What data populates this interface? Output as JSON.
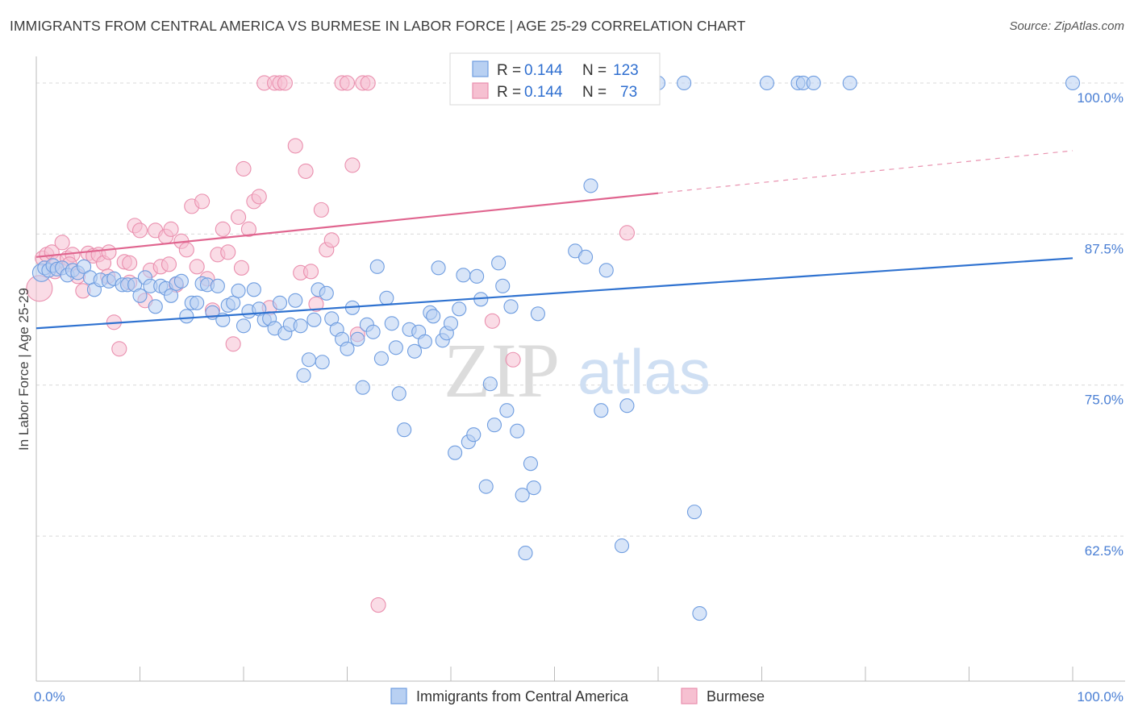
{
  "title": "IMMIGRANTS FROM CENTRAL AMERICA VS BURMESE IN LABOR FORCE | AGE 25-29 CORRELATION CHART",
  "source": "Source: ZipAtlas.com",
  "watermark": {
    "zip": "ZIP",
    "atlas": "atlas"
  },
  "colors": {
    "blue_fill": "#b8d0f2",
    "blue_stroke": "#6f9de0",
    "blue_line": "#2f72d0",
    "pink_fill": "#f6c0d1",
    "pink_stroke": "#ea8fae",
    "pink_line": "#e0658f",
    "grid": "#d9d9d9",
    "tick_text": "#4a7fd4"
  },
  "legend": {
    "rows": [
      {
        "r_label": "R = ",
        "r_value": "0.144",
        "n_label": "N = ",
        "n_value": "123"
      },
      {
        "r_label": "R = ",
        "r_value": "0.144",
        "n_label": "N = ",
        "n_value": "73"
      }
    ]
  },
  "chart_data": {
    "type": "scatter",
    "title": "IMMIGRANTS FROM CENTRAL AMERICA VS BURMESE IN LABOR FORCE | AGE 25-29 CORRELATION CHART",
    "xlabel": "",
    "ylabel": "In Labor Force | Age 25-29",
    "xlim": [
      0,
      100
    ],
    "ylim": [
      50.5,
      102.2
    ],
    "x_ticks": [
      "0.0%",
      "100.0%"
    ],
    "y_ticks": [
      {
        "value": 100.0,
        "label": "100.0%"
      },
      {
        "value": 87.5,
        "label": "87.5%"
      },
      {
        "value": 75.0,
        "label": "75.0%"
      },
      {
        "value": 62.5,
        "label": "62.5%"
      }
    ],
    "grid": true,
    "legend_position": "top-center",
    "series": [
      {
        "name": "Immigrants from Central America",
        "color": "#6f9de0",
        "trend": {
          "x": [
            0,
            100
          ],
          "y": [
            79.7,
            85.5
          ],
          "dashed_from": null
        },
        "points": [
          [
            0.5,
            84.3
          ],
          [
            0.8,
            84.7
          ],
          [
            1.2,
            84.5
          ],
          [
            1.6,
            84.9
          ],
          [
            2.0,
            84.6
          ],
          [
            2.5,
            84.7
          ],
          [
            3.0,
            84.1
          ],
          [
            3.5,
            84.5
          ],
          [
            4.0,
            84.3
          ],
          [
            4.6,
            84.8
          ],
          [
            5.2,
            83.9
          ],
          [
            5.6,
            82.9
          ],
          [
            6.2,
            83.7
          ],
          [
            7.0,
            83.6
          ],
          [
            7.5,
            83.8
          ],
          [
            8.3,
            83.3
          ],
          [
            8.8,
            83.3
          ],
          [
            9.5,
            83.3
          ],
          [
            10.0,
            82.4
          ],
          [
            10.5,
            83.9
          ],
          [
            11.0,
            83.2
          ],
          [
            11.5,
            81.5
          ],
          [
            12.0,
            83.2
          ],
          [
            12.5,
            83.0
          ],
          [
            13.0,
            82.4
          ],
          [
            13.5,
            83.4
          ],
          [
            14.0,
            83.6
          ],
          [
            14.5,
            80.7
          ],
          [
            15.0,
            81.8
          ],
          [
            15.5,
            81.8
          ],
          [
            16.0,
            83.4
          ],
          [
            16.5,
            83.3
          ],
          [
            17.0,
            81.0
          ],
          [
            17.5,
            83.2
          ],
          [
            18.0,
            80.4
          ],
          [
            18.5,
            81.6
          ],
          [
            19.0,
            81.8
          ],
          [
            19.5,
            82.8
          ],
          [
            20.0,
            79.9
          ],
          [
            20.5,
            81.1
          ],
          [
            21.0,
            82.9
          ],
          [
            21.5,
            81.3
          ],
          [
            22.0,
            80.4
          ],
          [
            22.5,
            80.5
          ],
          [
            23.0,
            79.7
          ],
          [
            23.5,
            81.8
          ],
          [
            24.0,
            79.3
          ],
          [
            24.5,
            80.0
          ],
          [
            25.0,
            82.0
          ],
          [
            25.5,
            79.9
          ],
          [
            25.8,
            75.8
          ],
          [
            26.3,
            77.1
          ],
          [
            26.8,
            80.4
          ],
          [
            27.2,
            82.9
          ],
          [
            27.6,
            76.9
          ],
          [
            28.0,
            82.6
          ],
          [
            28.5,
            80.5
          ],
          [
            29.0,
            79.6
          ],
          [
            29.5,
            78.8
          ],
          [
            30.0,
            78.0
          ],
          [
            30.5,
            81.4
          ],
          [
            31.0,
            78.8
          ],
          [
            31.5,
            74.8
          ],
          [
            31.9,
            80.0
          ],
          [
            32.5,
            79.4
          ],
          [
            32.9,
            84.8
          ],
          [
            33.3,
            77.2
          ],
          [
            33.8,
            82.2
          ],
          [
            34.3,
            80.1
          ],
          [
            34.7,
            78.1
          ],
          [
            35.0,
            74.3
          ],
          [
            35.5,
            71.3
          ],
          [
            36.0,
            79.6
          ],
          [
            36.5,
            77.8
          ],
          [
            36.9,
            79.4
          ],
          [
            37.5,
            78.6
          ],
          [
            38.0,
            81.0
          ],
          [
            38.3,
            80.7
          ],
          [
            38.8,
            84.7
          ],
          [
            39.2,
            78.7
          ],
          [
            39.6,
            79.3
          ],
          [
            40.0,
            80.1
          ],
          [
            40.4,
            69.4
          ],
          [
            40.8,
            81.3
          ],
          [
            41.2,
            84.1
          ],
          [
            41.7,
            70.3
          ],
          [
            42.2,
            70.9
          ],
          [
            42.5,
            84.0
          ],
          [
            42.9,
            82.1
          ],
          [
            43.4,
            66.6
          ],
          [
            43.8,
            75.1
          ],
          [
            44.2,
            71.7
          ],
          [
            44.6,
            85.1
          ],
          [
            45.0,
            83.2
          ],
          [
            45.4,
            72.9
          ],
          [
            45.8,
            81.5
          ],
          [
            46.4,
            71.2
          ],
          [
            46.9,
            65.9
          ],
          [
            47.2,
            61.1
          ],
          [
            47.7,
            68.5
          ],
          [
            48.0,
            66.5
          ],
          [
            48.4,
            80.9
          ],
          [
            49.0,
            100.0
          ],
          [
            50.0,
            100.0
          ],
          [
            51.0,
            100.0
          ],
          [
            52.0,
            86.1
          ],
          [
            53.0,
            85.6
          ],
          [
            53.5,
            91.5
          ],
          [
            54.5,
            72.9
          ],
          [
            55.0,
            84.5
          ],
          [
            56.5,
            61.7
          ],
          [
            57.0,
            73.3
          ],
          [
            58.0,
            100.0
          ],
          [
            60.0,
            100.0
          ],
          [
            62.5,
            100.0
          ],
          [
            63.5,
            64.5
          ],
          [
            64.0,
            56.1
          ],
          [
            70.5,
            100.0
          ],
          [
            73.5,
            100.0
          ],
          [
            74.0,
            100.0
          ],
          [
            75.0,
            100.0
          ],
          [
            78.5,
            100.0
          ],
          [
            100.0,
            100.0
          ]
        ]
      },
      {
        "name": "Burmese",
        "color": "#ea8fae",
        "trend": {
          "x": [
            0,
            100
          ],
          "y": [
            85.6,
            94.4
          ],
          "dashed_from": 60
        },
        "points": [
          [
            0.3,
            83.0
          ],
          [
            0.6,
            85.5
          ],
          [
            1.0,
            85.8
          ],
          [
            1.5,
            86.0
          ],
          [
            2.0,
            85.2
          ],
          [
            2.5,
            86.8
          ],
          [
            3.0,
            85.5
          ],
          [
            3.5,
            85.8
          ],
          [
            4.0,
            84.0
          ],
          [
            4.5,
            82.8
          ],
          [
            5.0,
            85.9
          ],
          [
            5.5,
            85.7
          ],
          [
            6.0,
            85.8
          ],
          [
            6.5,
            85.1
          ],
          [
            7.0,
            86.0
          ],
          [
            7.5,
            80.2
          ],
          [
            8.0,
            78.0
          ],
          [
            8.5,
            85.2
          ],
          [
            9.0,
            83.5
          ],
          [
            9.5,
            88.2
          ],
          [
            10.0,
            87.8
          ],
          [
            10.5,
            82.0
          ],
          [
            11.0,
            84.5
          ],
          [
            11.5,
            87.8
          ],
          [
            12.0,
            84.8
          ],
          [
            12.5,
            87.3
          ],
          [
            13.0,
            87.9
          ],
          [
            13.5,
            83.3
          ],
          [
            14.0,
            86.9
          ],
          [
            14.5,
            86.2
          ],
          [
            15.0,
            89.8
          ],
          [
            15.5,
            84.8
          ],
          [
            16.0,
            90.2
          ],
          [
            16.5,
            83.8
          ],
          [
            17.0,
            81.2
          ],
          [
            17.5,
            85.8
          ],
          [
            18.0,
            87.9
          ],
          [
            18.5,
            86.0
          ],
          [
            19.0,
            78.4
          ],
          [
            19.5,
            88.9
          ],
          [
            20.0,
            92.9
          ],
          [
            20.5,
            87.9
          ],
          [
            21.0,
            90.2
          ],
          [
            21.5,
            90.6
          ],
          [
            22.0,
            100.0
          ],
          [
            22.5,
            81.4
          ],
          [
            23.0,
            100.0
          ],
          [
            23.5,
            100.0
          ],
          [
            24.0,
            100.0
          ],
          [
            25.0,
            94.8
          ],
          [
            25.5,
            84.3
          ],
          [
            26.0,
            92.7
          ],
          [
            26.5,
            84.4
          ],
          [
            27.0,
            81.7
          ],
          [
            27.5,
            89.5
          ],
          [
            28.0,
            86.2
          ],
          [
            28.5,
            87.0
          ],
          [
            29.5,
            100.0
          ],
          [
            30.0,
            100.0
          ],
          [
            30.5,
            93.2
          ],
          [
            31.0,
            79.2
          ],
          [
            31.5,
            100.0
          ],
          [
            32.0,
            100.0
          ],
          [
            33.0,
            56.8
          ],
          [
            46.0,
            77.1
          ],
          [
            57.0,
            87.6
          ],
          [
            44.0,
            80.3
          ],
          [
            9.0,
            85.1
          ],
          [
            12.8,
            85.0
          ],
          [
            3.2,
            85.0
          ],
          [
            19.8,
            84.7
          ],
          [
            6.9,
            84.0
          ],
          [
            1.8,
            84.4
          ]
        ]
      }
    ]
  },
  "bottom_legend": {
    "items": [
      {
        "label": "Immigrants from Central America"
      },
      {
        "label": "Burmese"
      }
    ]
  }
}
